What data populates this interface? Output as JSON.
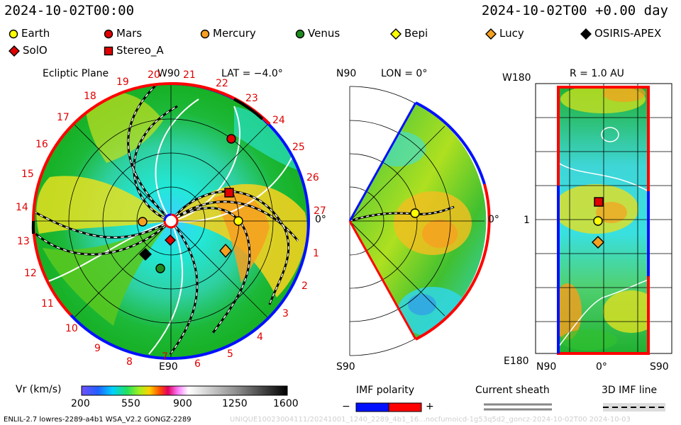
{
  "header": {
    "datetime_left": "2024-10-02T00:00",
    "datetime_right": "2024-10-02T00 +0.00 day"
  },
  "legend": [
    {
      "label": "Earth",
      "shape": "circle",
      "color": "#ffff00"
    },
    {
      "label": "Mars",
      "shape": "circle",
      "color": "#e00000"
    },
    {
      "label": "Mercury",
      "shape": "circle",
      "color": "#f5a020"
    },
    {
      "label": "Venus",
      "shape": "circle",
      "color": "#1f8a1f"
    },
    {
      "label": "Bepi",
      "shape": "diamond",
      "color": "#ffff00"
    },
    {
      "label": "Lucy",
      "shape": "diamond",
      "color": "#f5a020"
    },
    {
      "label": "OSIRIS-APEX",
      "shape": "diamond",
      "color": "#000000"
    },
    {
      "label": "SolO",
      "shape": "diamond",
      "color": "#e00000"
    },
    {
      "label": "Stereo_A",
      "shape": "square",
      "color": "#e00000"
    }
  ],
  "ecliptic": {
    "title": "Ecliptic Plane",
    "top_label": "W90",
    "bottom_label": "E90",
    "right_label": "0°",
    "lat_label": "LAT = −4.0°",
    "carrington_ticks": [
      "19",
      "20",
      "21",
      "22",
      "23",
      "24",
      "25",
      "26",
      "27",
      "1",
      "2",
      "3",
      "4",
      "5",
      "6",
      "7",
      "8",
      "9",
      "10",
      "11",
      "12",
      "13",
      "14",
      "15",
      "16",
      "17",
      "18"
    ]
  },
  "meridional": {
    "top_label": "N90",
    "lon_label": "LON = 0°",
    "right_label": "0°",
    "bottom_label": "S90"
  },
  "synoptic": {
    "top_left": "W180",
    "title": "R = 1.0 AU",
    "mid_left": "1",
    "bottom_left": "E180",
    "x_labels": [
      "N90",
      "0°",
      "S90"
    ]
  },
  "colorbar": {
    "label": "Vr (km/s)",
    "ticks": [
      "200",
      "550",
      "900",
      "1250",
      "1600"
    ]
  },
  "imf_polarity": {
    "label": "IMF polarity",
    "minus": "−",
    "plus": "+",
    "colors": [
      "#0000ff",
      "#ff0000"
    ]
  },
  "current_sheath": {
    "label": "Current sheath"
  },
  "imf_line": {
    "label": "3D IMF line"
  },
  "footer": {
    "left": "ENLIL-2.7 lowres-2289-a4b1 WSA_V2.2 GONGZ-2289",
    "right": "UNIQUE10023004111/20241001_1240_2289_4b1_16...nocfumoicd-1g53q5d2_goncz-2024-10-02T00     2024-10-03"
  }
}
